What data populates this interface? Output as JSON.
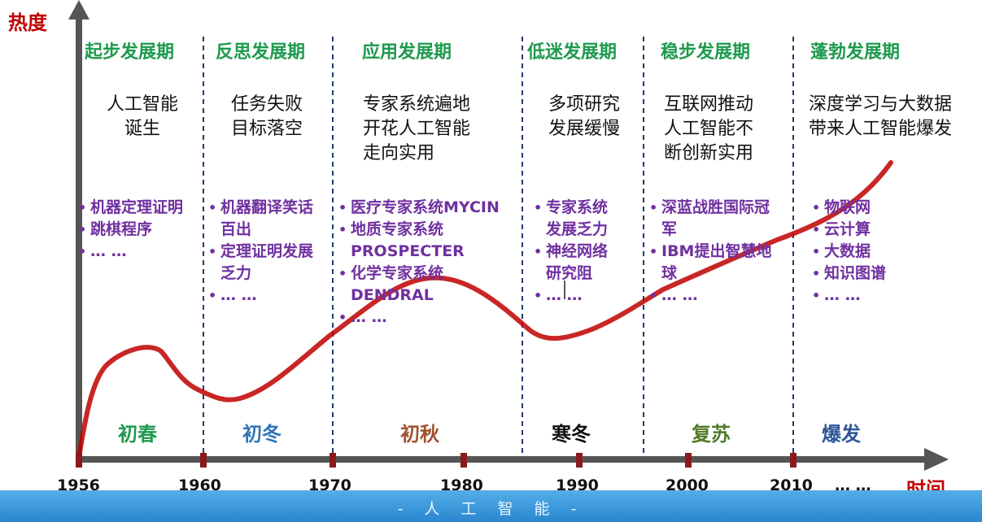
{
  "axes": {
    "y_title": "热度",
    "x_title": "时间"
  },
  "periods": [
    {
      "name": "起步发展期",
      "description": [
        "人工智能",
        "诞生"
      ],
      "items": [
        "机器定理证明",
        "跳棋程序",
        "… …"
      ],
      "season": "初春",
      "season_color": "#1e9a4e"
    },
    {
      "name": "反思发展期",
      "description": [
        "任务失败",
        "目标落空"
      ],
      "items": [
        "机器翻译笑话",
        "百出",
        "定理证明发展",
        "乏力",
        "… …"
      ],
      "season": "初冬",
      "season_color": "#2e74b5"
    },
    {
      "name": "应用发展期",
      "description": [
        "专家系统遍地",
        "开花人工智能",
        "走向实用"
      ],
      "items": [
        "医疗专家系统MYCIN",
        "地质专家系统",
        "PROSPECTER",
        "化学专家系统",
        "DENDRAL",
        "… …"
      ],
      "season": "初秋",
      "season_color": "#a0522d"
    },
    {
      "name": "低迷发展期",
      "description": [
        "多项研究",
        "发展缓慢"
      ],
      "items": [
        "专家系统",
        "发展乏力",
        "神经网络",
        "研究阻",
        "… …"
      ],
      "season": "寒冬",
      "season_color": "#111111"
    },
    {
      "name": "稳步发展期",
      "description": [
        "互联网推动",
        "人工智能不",
        "断创新实用"
      ],
      "items": [
        "深蓝战胜国际冠",
        "军",
        "IBM提出智慧地",
        "球",
        "… …"
      ],
      "season": "复苏",
      "season_color": "#4f7a28"
    },
    {
      "name": "蓬勃发展期",
      "description": [
        "深度学习与大数据",
        "带来人工智能爆发"
      ],
      "items": [
        "物联网",
        "云计算",
        "大数据",
        "知识图谱",
        "… …"
      ],
      "season": "爆发",
      "season_color": "#2f5597"
    }
  ],
  "years": [
    "1956",
    "1960",
    "1970",
    "1980",
    "1990",
    "2000",
    "2010",
    "… …"
  ],
  "footer": "- 人 工 智 能 -",
  "colors": {
    "axis": "#555555",
    "curve": "#c00000",
    "divider": "#1f3a6e",
    "tick": "#8b1a1a",
    "footer": "#3a95dc"
  }
}
